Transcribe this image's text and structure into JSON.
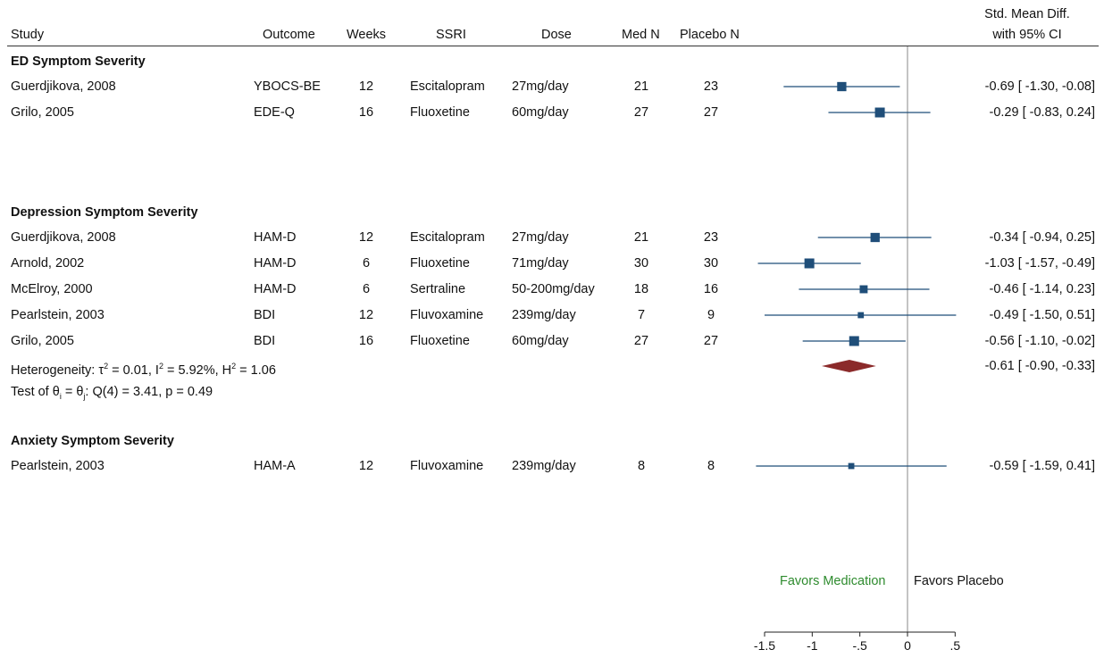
{
  "headers": {
    "study": "Study",
    "outcome": "Outcome",
    "weeks": "Weeks",
    "ssri": "SSRI",
    "dose": "Dose",
    "med_n": "Med N",
    "placebo_n": "Placebo N",
    "effect_line1": "Std. Mean Diff.",
    "effect_line2": "with 95% CI"
  },
  "sections": [
    {
      "label": "ED Symptom Severity"
    },
    {
      "label": "Depression Symptom Severity"
    },
    {
      "label": "Anxiety Symptom Severity"
    }
  ],
  "rows": [
    {
      "study": "Guerdjikova, 2008",
      "outcome": "YBOCS-BE",
      "weeks": "12",
      "ssri": "Escitalopram",
      "dose": "27mg/day",
      "med_n": "21",
      "placebo_n": "23",
      "ci_text": "-0.69 [ -1.30, -0.08]"
    },
    {
      "study": "Grilo, 2005",
      "outcome": "EDE-Q",
      "weeks": "16",
      "ssri": "Fluoxetine",
      "dose": "60mg/day",
      "med_n": "27",
      "placebo_n": "27",
      "ci_text": "-0.29 [ -0.83,  0.24]"
    },
    {
      "study": "Guerdjikova, 2008",
      "outcome": "HAM-D",
      "weeks": "12",
      "ssri": "Escitalopram",
      "dose": "27mg/day",
      "med_n": "21",
      "placebo_n": "23",
      "ci_text": "-0.34 [ -0.94,  0.25]"
    },
    {
      "study": "Arnold, 2002",
      "outcome": "HAM-D",
      "weeks": "6",
      "ssri": "Fluoxetine",
      "dose": "71mg/day",
      "med_n": "30",
      "placebo_n": "30",
      "ci_text": "-1.03 [ -1.57, -0.49]"
    },
    {
      "study": "McElroy, 2000",
      "outcome": "HAM-D",
      "weeks": "6",
      "ssri": "Sertraline",
      "dose": "50-200mg/day",
      "med_n": "18",
      "placebo_n": "16",
      "ci_text": "-0.46 [ -1.14,  0.23]"
    },
    {
      "study": "Pearlstein, 2003",
      "outcome": "BDI",
      "weeks": "12",
      "ssri": "Fluvoxamine",
      "dose": "239mg/day",
      "med_n": "7",
      "placebo_n": "9",
      "ci_text": "-0.49 [ -1.50,  0.51]"
    },
    {
      "study": "Grilo, 2005",
      "outcome": "BDI",
      "weeks": "16",
      "ssri": "Fluoxetine",
      "dose": "60mg/day",
      "med_n": "27",
      "placebo_n": "27",
      "ci_text": "-0.56 [ -1.10, -0.02]"
    },
    {
      "study": "Pearlstein, 2003",
      "outcome": "HAM-A",
      "weeks": "12",
      "ssri": "Fluvoxamine",
      "dose": "239mg/day",
      "med_n": "8",
      "placebo_n": "8",
      "ci_text": "-0.59 [ -1.59,  0.41]"
    }
  ],
  "heterogeneity": {
    "prefix": "Heterogeneity: ",
    "tau": "τ",
    "tau_sup": "2",
    "tau_value": " = 0.01, I",
    "i_sup": "2",
    "i_value": " = 5.92%, H",
    "h_sup": "2",
    "h_value": " = 1.06",
    "pooled_text": "-0.61 [ -0.90, -0.33]"
  },
  "test": {
    "prefix": "Test of θ",
    "sub_i": "i",
    "mid": " = θ",
    "sub_j": "j",
    "rest": ": Q(4) = 3.41, p = 0.49"
  },
  "favors": {
    "medication": "Favors Medication",
    "placebo": "Favors Placebo",
    "medication_color": "#2e8b2e"
  },
  "chart_data": {
    "type": "forest",
    "xlim": [
      -1.6,
      0.55
    ],
    "xticks": [
      -1.5,
      -1,
      -0.5,
      0,
      0.5
    ],
    "xtick_labels": [
      "-1.5",
      "-1",
      "-.5",
      "0",
      ".5"
    ],
    "reference_line": 0,
    "marker_color": "#1f4e79",
    "pooled_color": "#8b2a2a",
    "studies": [
      {
        "est": -0.69,
        "lo": -1.3,
        "hi": -0.08,
        "weight": 0.9
      },
      {
        "est": -0.29,
        "lo": -0.83,
        "hi": 0.24,
        "weight": 1.0
      },
      {
        "est": -0.34,
        "lo": -0.94,
        "hi": 0.25,
        "weight": 0.9
      },
      {
        "est": -1.03,
        "lo": -1.57,
        "hi": -0.49,
        "weight": 1.0
      },
      {
        "est": -0.46,
        "lo": -1.14,
        "hi": 0.23,
        "weight": 0.7
      },
      {
        "est": -0.49,
        "lo": -1.5,
        "hi": 0.51,
        "weight": 0.4
      },
      {
        "est": -0.56,
        "lo": -1.1,
        "hi": -0.02,
        "weight": 1.0
      },
      {
        "est": -0.59,
        "lo": -1.59,
        "hi": 0.41,
        "weight": 0.4
      }
    ],
    "pooled": {
      "est": -0.61,
      "lo": -0.9,
      "hi": -0.33
    }
  }
}
